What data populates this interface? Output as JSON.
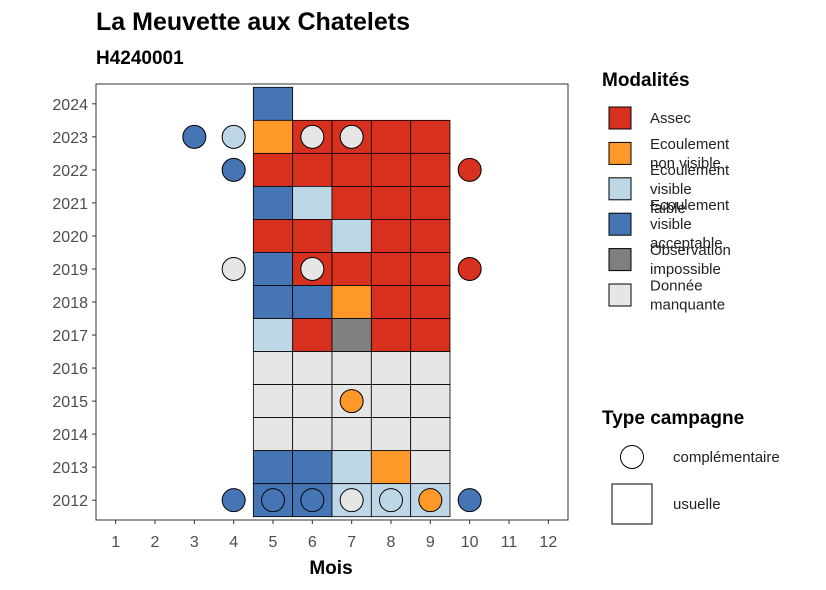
{
  "chart_data": {
    "type": "heatmap",
    "title": "La Meuvette aux Chatelets",
    "subtitle": "H4240001",
    "xlabel": "Mois",
    "ylabel": "",
    "x_ticks": [
      1,
      2,
      3,
      4,
      5,
      6,
      7,
      8,
      9,
      10,
      11,
      12
    ],
    "y_ticks": [
      2012,
      2013,
      2014,
      2015,
      2016,
      2017,
      2018,
      2019,
      2020,
      2021,
      2022,
      2023,
      2024
    ],
    "xlim": [
      0.5,
      12.5
    ],
    "ylim": [
      2011.4,
      2024.6
    ],
    "grid": false,
    "legend_position": "right",
    "legend_modalites_title": "Modalités",
    "legend_campagne_title": "Type campagne",
    "modalites": [
      {
        "key": "assec",
        "label_lines": [
          "Assec"
        ],
        "color": "#d7301f"
      },
      {
        "key": "nonvisible",
        "label_lines": [
          "Ecoulement",
          "non visible"
        ],
        "color": "#fe9929"
      },
      {
        "key": "faible",
        "label_lines": [
          "Ecoulement",
          "visible",
          "faible"
        ],
        "color": "#bdd7e7"
      },
      {
        "key": "acceptable",
        "label_lines": [
          "Ecoulement",
          "visible",
          "acceptable"
        ],
        "color": "#4575b4"
      },
      {
        "key": "impossible",
        "label_lines": [
          "Observation",
          "impossible"
        ],
        "color": "#808080"
      },
      {
        "key": "manquante",
        "label_lines": [
          "Donnée",
          "manquante"
        ],
        "color": "#e6e6e6"
      }
    ],
    "campagne_types": [
      {
        "key": "complementaire",
        "label": "complémentaire",
        "shape": "circle"
      },
      {
        "key": "usuelle",
        "label": "usuelle",
        "shape": "square"
      }
    ],
    "usuelle": [
      {
        "year": 2024,
        "month": 5,
        "status": "acceptable"
      },
      {
        "year": 2023,
        "month": 5,
        "status": "nonvisible"
      },
      {
        "year": 2023,
        "month": 6,
        "status": "assec"
      },
      {
        "year": 2023,
        "month": 7,
        "status": "assec"
      },
      {
        "year": 2023,
        "month": 8,
        "status": "assec"
      },
      {
        "year": 2023,
        "month": 9,
        "status": "assec"
      },
      {
        "year": 2022,
        "month": 5,
        "status": "assec"
      },
      {
        "year": 2022,
        "month": 6,
        "status": "assec"
      },
      {
        "year": 2022,
        "month": 7,
        "status": "assec"
      },
      {
        "year": 2022,
        "month": 8,
        "status": "assec"
      },
      {
        "year": 2022,
        "month": 9,
        "status": "assec"
      },
      {
        "year": 2021,
        "month": 5,
        "status": "acceptable"
      },
      {
        "year": 2021,
        "month": 6,
        "status": "faible"
      },
      {
        "year": 2021,
        "month": 7,
        "status": "assec"
      },
      {
        "year": 2021,
        "month": 8,
        "status": "assec"
      },
      {
        "year": 2021,
        "month": 9,
        "status": "assec"
      },
      {
        "year": 2020,
        "month": 5,
        "status": "assec"
      },
      {
        "year": 2020,
        "month": 6,
        "status": "assec"
      },
      {
        "year": 2020,
        "month": 7,
        "status": "faible"
      },
      {
        "year": 2020,
        "month": 8,
        "status": "assec"
      },
      {
        "year": 2020,
        "month": 9,
        "status": "assec"
      },
      {
        "year": 2019,
        "month": 5,
        "status": "acceptable"
      },
      {
        "year": 2019,
        "month": 6,
        "status": "assec"
      },
      {
        "year": 2019,
        "month": 7,
        "status": "assec"
      },
      {
        "year": 2019,
        "month": 8,
        "status": "assec"
      },
      {
        "year": 2019,
        "month": 9,
        "status": "assec"
      },
      {
        "year": 2018,
        "month": 5,
        "status": "acceptable"
      },
      {
        "year": 2018,
        "month": 6,
        "status": "acceptable"
      },
      {
        "year": 2018,
        "month": 7,
        "status": "nonvisible"
      },
      {
        "year": 2018,
        "month": 8,
        "status": "assec"
      },
      {
        "year": 2018,
        "month": 9,
        "status": "assec"
      },
      {
        "year": 2017,
        "month": 5,
        "status": "faible"
      },
      {
        "year": 2017,
        "month": 6,
        "status": "assec"
      },
      {
        "year": 2017,
        "month": 7,
        "status": "impossible"
      },
      {
        "year": 2017,
        "month": 8,
        "status": "assec"
      },
      {
        "year": 2017,
        "month": 9,
        "status": "assec"
      },
      {
        "year": 2016,
        "month": 5,
        "status": "manquante"
      },
      {
        "year": 2016,
        "month": 6,
        "status": "manquante"
      },
      {
        "year": 2016,
        "month": 7,
        "status": "manquante"
      },
      {
        "year": 2016,
        "month": 8,
        "status": "manquante"
      },
      {
        "year": 2016,
        "month": 9,
        "status": "manquante"
      },
      {
        "year": 2015,
        "month": 5,
        "status": "manquante"
      },
      {
        "year": 2015,
        "month": 6,
        "status": "manquante"
      },
      {
        "year": 2015,
        "month": 7,
        "status": "manquante"
      },
      {
        "year": 2015,
        "month": 8,
        "status": "manquante"
      },
      {
        "year": 2015,
        "month": 9,
        "status": "manquante"
      },
      {
        "year": 2014,
        "month": 5,
        "status": "manquante"
      },
      {
        "year": 2014,
        "month": 6,
        "status": "manquante"
      },
      {
        "year": 2014,
        "month": 7,
        "status": "manquante"
      },
      {
        "year": 2014,
        "month": 8,
        "status": "manquante"
      },
      {
        "year": 2014,
        "month": 9,
        "status": "manquante"
      },
      {
        "year": 2013,
        "month": 5,
        "status": "acceptable"
      },
      {
        "year": 2013,
        "month": 6,
        "status": "acceptable"
      },
      {
        "year": 2013,
        "month": 7,
        "status": "faible"
      },
      {
        "year": 2013,
        "month": 8,
        "status": "nonvisible"
      },
      {
        "year": 2013,
        "month": 9,
        "status": "manquante"
      },
      {
        "year": 2012,
        "month": 5,
        "status": "acceptable"
      },
      {
        "year": 2012,
        "month": 6,
        "status": "acceptable"
      },
      {
        "year": 2012,
        "month": 7,
        "status": "faible"
      },
      {
        "year": 2012,
        "month": 8,
        "status": "faible"
      },
      {
        "year": 2012,
        "month": 9,
        "status": "faible"
      }
    ],
    "complementaire": [
      {
        "year": 2023,
        "month": 3,
        "status": "acceptable"
      },
      {
        "year": 2023,
        "month": 4,
        "status": "faible"
      },
      {
        "year": 2023,
        "month": 6,
        "status": "manquante"
      },
      {
        "year": 2023,
        "month": 7,
        "status": "manquante"
      },
      {
        "year": 2022,
        "month": 4,
        "status": "acceptable"
      },
      {
        "year": 2022,
        "month": 10,
        "status": "assec"
      },
      {
        "year": 2019,
        "month": 4,
        "status": "manquante"
      },
      {
        "year": 2019,
        "month": 6,
        "status": "manquante"
      },
      {
        "year": 2019,
        "month": 10,
        "status": "assec"
      },
      {
        "year": 2015,
        "month": 7,
        "status": "nonvisible"
      },
      {
        "year": 2012,
        "month": 4,
        "status": "acceptable"
      },
      {
        "year": 2012,
        "month": 5,
        "status": "acceptable"
      },
      {
        "year": 2012,
        "month": 6,
        "status": "acceptable"
      },
      {
        "year": 2012,
        "month": 7,
        "status": "manquante"
      },
      {
        "year": 2012,
        "month": 8,
        "status": "faible"
      },
      {
        "year": 2012,
        "month": 9,
        "status": "nonvisible"
      },
      {
        "year": 2012,
        "month": 10,
        "status": "acceptable"
      }
    ]
  }
}
